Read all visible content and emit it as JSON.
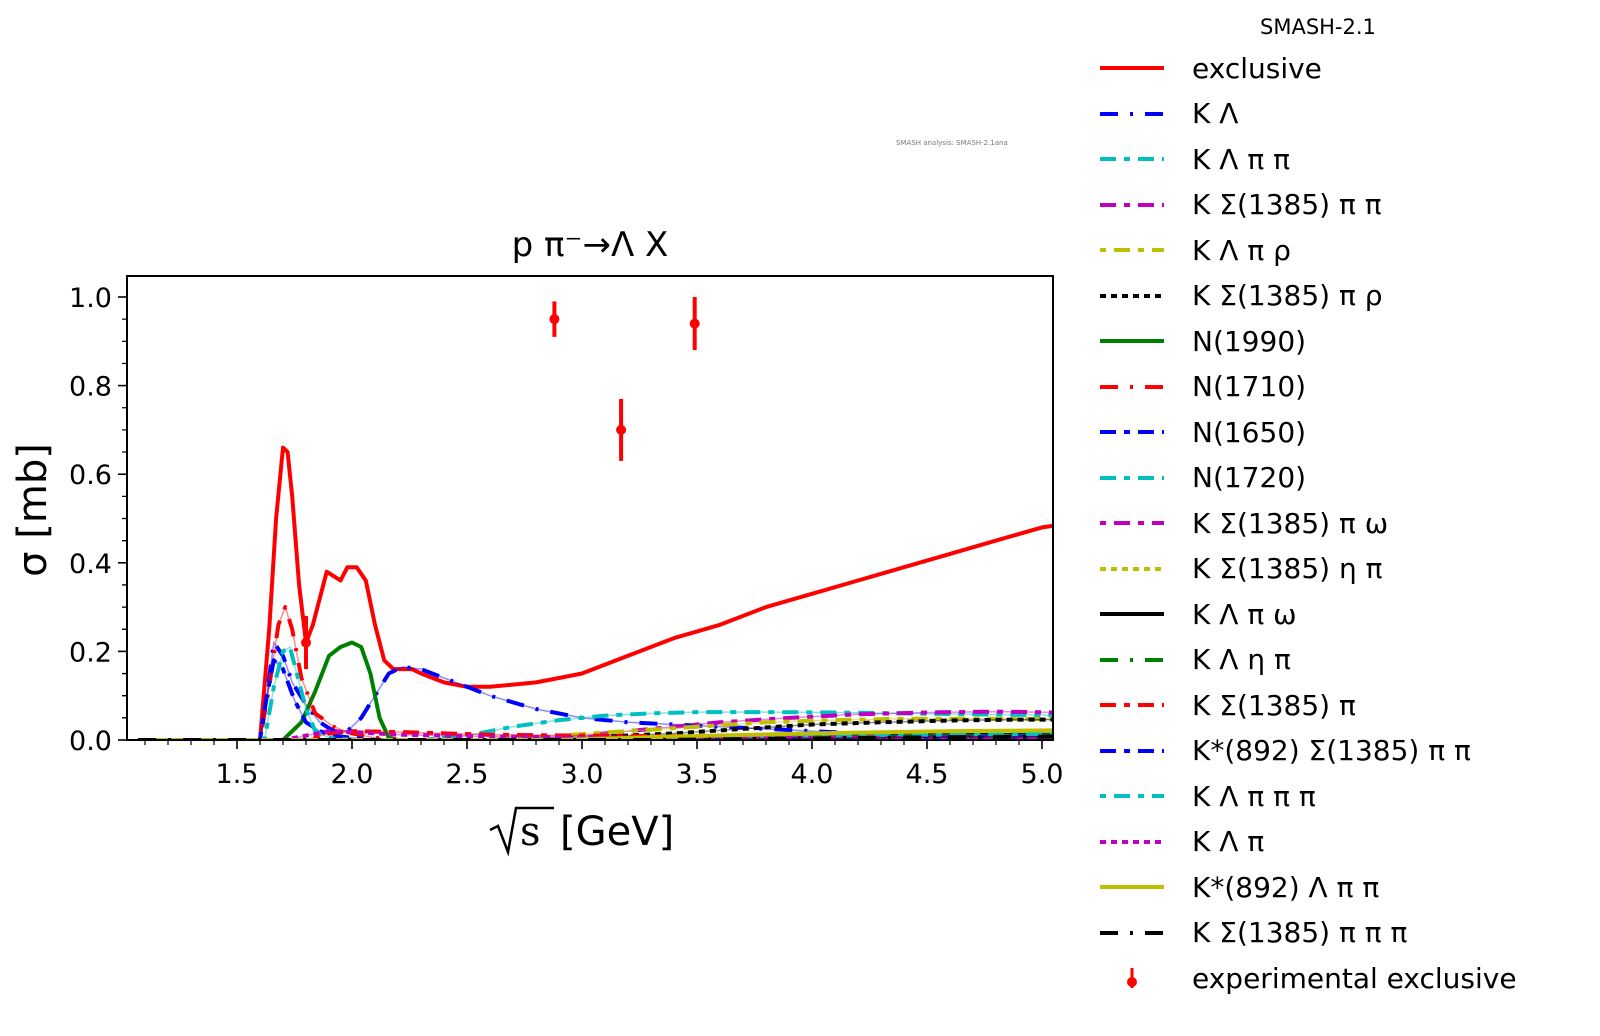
{
  "chart_data": {
    "type": "line",
    "title": "p π⁻→Λ X",
    "xlabel": "√s [GeV]",
    "xlabel_root": "s",
    "xlabel_unit": "[GeV]",
    "ylabel": "σ [mb]",
    "xlim": [
      1.07,
      5.07
    ],
    "ylim": [
      0.0,
      1.05
    ],
    "xticks": [
      1.5,
      2.0,
      2.5,
      3.0,
      3.5,
      4.0,
      4.5,
      5.0
    ],
    "xtick_labels": [
      "1.5",
      "2.0",
      "2.5",
      "3.0",
      "3.5",
      "4.0",
      "4.5",
      "5.0"
    ],
    "yticks": [
      0.0,
      0.2,
      0.4,
      0.6,
      0.8,
      1.0
    ],
    "ytick_labels": [
      "0.0",
      "0.2",
      "0.4",
      "0.6",
      "0.8",
      "1.0"
    ],
    "grid": false,
    "legend_title": "SMASH-2.1",
    "legend_position": "outside-right",
    "annotation": "SMASH analysis: SMASH-2.1ana",
    "series": [
      {
        "name": "exclusive",
        "color": "#ff0000",
        "dash": "solid",
        "x": [
          1.07,
          1.6,
          1.64,
          1.67,
          1.7,
          1.72,
          1.74,
          1.77,
          1.8,
          1.83,
          1.86,
          1.89,
          1.92,
          1.95,
          1.98,
          2.02,
          2.06,
          2.1,
          2.14,
          2.18,
          2.22,
          2.26,
          2.3,
          2.4,
          2.5,
          2.6,
          2.7,
          2.8,
          2.9,
          3.0,
          3.2,
          3.4,
          3.6,
          3.8,
          4.0,
          4.2,
          4.4,
          4.6,
          4.8,
          5.0,
          5.07
        ],
        "y": [
          0.0,
          0.0,
          0.25,
          0.5,
          0.66,
          0.65,
          0.55,
          0.35,
          0.22,
          0.26,
          0.32,
          0.38,
          0.37,
          0.36,
          0.39,
          0.39,
          0.36,
          0.26,
          0.18,
          0.16,
          0.16,
          0.16,
          0.15,
          0.13,
          0.12,
          0.12,
          0.125,
          0.13,
          0.14,
          0.15,
          0.19,
          0.23,
          0.26,
          0.3,
          0.33,
          0.36,
          0.39,
          0.42,
          0.45,
          0.48,
          0.485
        ]
      },
      {
        "name": "K Λ",
        "color": "#0000ff",
        "dash": "long-dot",
        "x": [
          1.07,
          1.6,
          1.63,
          1.66,
          1.7,
          1.74,
          1.8,
          1.86,
          1.92,
          1.98,
          2.04,
          2.1,
          2.16,
          2.22,
          2.3,
          2.4,
          2.5,
          2.6,
          2.8,
          3.0,
          3.2,
          3.4,
          3.6,
          3.8,
          4.0,
          4.2,
          4.4,
          4.6,
          5.07
        ],
        "y": [
          0.0,
          0.0,
          0.1,
          0.22,
          0.19,
          0.13,
          0.08,
          0.04,
          0.02,
          0.02,
          0.05,
          0.1,
          0.15,
          0.165,
          0.16,
          0.14,
          0.12,
          0.1,
          0.07,
          0.05,
          0.04,
          0.035,
          0.03,
          0.025,
          0.02,
          0.015,
          0.01,
          0.008,
          0.005
        ]
      },
      {
        "name": "K Λ π π",
        "color": "#00bfbf",
        "dash": "long-short",
        "x": [
          1.07,
          2.3,
          2.5,
          2.7,
          2.9,
          3.1,
          3.3,
          3.5,
          3.8,
          4.1,
          4.4,
          4.7,
          5.07
        ],
        "y": [
          0.0,
          0.0,
          0.01,
          0.03,
          0.045,
          0.055,
          0.06,
          0.063,
          0.063,
          0.062,
          0.06,
          0.058,
          0.056
        ]
      },
      {
        "name": "K Σ(1385) π π",
        "color": "#bf00bf",
        "dash": "long-short",
        "x": [
          1.07,
          2.7,
          3.0,
          3.3,
          3.6,
          3.9,
          4.2,
          4.5,
          4.8,
          5.07
        ],
        "y": [
          0.0,
          0.0,
          0.01,
          0.025,
          0.04,
          0.05,
          0.058,
          0.062,
          0.064,
          0.062
        ]
      },
      {
        "name": "K Λ π ρ",
        "color": "#bfbf00",
        "dash": "short-long",
        "x": [
          1.07,
          2.6,
          2.9,
          3.2,
          3.5,
          3.8,
          4.1,
          4.4,
          4.7,
          5.07
        ],
        "y": [
          0.0,
          0.0,
          0.01,
          0.02,
          0.03,
          0.04,
          0.045,
          0.048,
          0.048,
          0.047
        ]
      },
      {
        "name": "K Σ(1385) π ρ",
        "color": "#000000",
        "dash": "dashed",
        "x": [
          1.07,
          2.8,
          3.1,
          3.4,
          3.7,
          4.0,
          4.3,
          4.6,
          4.9,
          5.07
        ],
        "y": [
          0.0,
          0.0,
          0.008,
          0.015,
          0.025,
          0.035,
          0.04,
          0.044,
          0.046,
          0.046
        ]
      },
      {
        "name": "N(1990)",
        "color": "#008000",
        "dash": "solid",
        "x": [
          1.07,
          1.7,
          1.78,
          1.84,
          1.9,
          1.95,
          2.0,
          2.04,
          2.08,
          2.12,
          2.16,
          2.2,
          5.07
        ],
        "y": [
          0.0,
          0.0,
          0.04,
          0.11,
          0.19,
          0.21,
          0.22,
          0.21,
          0.15,
          0.05,
          0.005,
          0.0,
          0.0
        ]
      },
      {
        "name": "N(1710)",
        "color": "#ff0000",
        "dash": "long-dot",
        "x": [
          1.07,
          1.6,
          1.64,
          1.68,
          1.71,
          1.74,
          1.78,
          1.84,
          1.92,
          2.0,
          2.1,
          2.2,
          5.07
        ],
        "y": [
          0.0,
          0.0,
          0.12,
          0.26,
          0.3,
          0.25,
          0.14,
          0.06,
          0.03,
          0.015,
          0.005,
          0.0,
          0.0
        ]
      },
      {
        "name": "N(1650)",
        "color": "#0000ff",
        "dash": "long-short",
        "x": [
          1.07,
          1.6,
          1.63,
          1.66,
          1.7,
          1.75,
          1.8,
          1.86,
          1.92,
          2.0,
          2.1,
          5.07
        ],
        "y": [
          0.0,
          0.0,
          0.1,
          0.18,
          0.16,
          0.09,
          0.04,
          0.02,
          0.01,
          0.005,
          0.0,
          0.0
        ]
      },
      {
        "name": "N(1720)",
        "color": "#00bfbf",
        "dash": "long-short",
        "x": [
          1.07,
          1.62,
          1.66,
          1.7,
          1.73,
          1.76,
          1.8,
          1.84,
          1.9,
          2.0,
          5.07
        ],
        "y": [
          0.0,
          0.0,
          0.12,
          0.2,
          0.21,
          0.15,
          0.07,
          0.02,
          0.005,
          0.0,
          0.0
        ]
      },
      {
        "name": "K Σ(1385) π ω",
        "color": "#bf00bf",
        "dash": "short-long",
        "x": [
          1.07,
          3.5,
          4.0,
          4.5,
          5.07
        ],
        "y": [
          0.0,
          0.0,
          0.002,
          0.005,
          0.008
        ]
      },
      {
        "name": "K Σ(1385) η π",
        "color": "#bfbf00",
        "dash": "dashed",
        "x": [
          1.07,
          3.2,
          3.8,
          4.4,
          5.07
        ],
        "y": [
          0.0,
          0.0,
          0.003,
          0.006,
          0.008
        ]
      },
      {
        "name": "K Λ π ω",
        "color": "#000000",
        "dash": "solid",
        "x": [
          1.07,
          3.0,
          3.6,
          4.2,
          5.07
        ],
        "y": [
          0.0,
          0.0,
          0.005,
          0.01,
          0.012
        ]
      },
      {
        "name": "K Λ η π",
        "color": "#008000",
        "dash": "long-dot",
        "x": [
          1.07,
          2.8,
          3.4,
          4.0,
          5.07
        ],
        "y": [
          0.0,
          0.0,
          0.004,
          0.008,
          0.01
        ]
      },
      {
        "name": "K Σ(1385) π",
        "color": "#ff0000",
        "dash": "long-short",
        "x": [
          1.07,
          1.8,
          1.9,
          2.0,
          2.2,
          2.6,
          3.0,
          3.6,
          4.2,
          5.07
        ],
        "y": [
          0.0,
          0.0,
          0.015,
          0.02,
          0.018,
          0.012,
          0.01,
          0.008,
          0.007,
          0.006
        ]
      },
      {
        "name": "K*(892) Σ(1385) π π",
        "color": "#0000ff",
        "dash": "long-short",
        "x": [
          1.07,
          3.4,
          4.0,
          4.6,
          5.07
        ],
        "y": [
          0.0,
          0.0,
          0.003,
          0.006,
          0.008
        ]
      },
      {
        "name": "K Λ π π π",
        "color": "#00bfbf",
        "dash": "short-long",
        "x": [
          1.07,
          2.6,
          3.2,
          3.8,
          4.4,
          5.07
        ],
        "y": [
          0.0,
          0.0,
          0.004,
          0.008,
          0.011,
          0.013
        ]
      },
      {
        "name": "K Λ π",
        "color": "#bf00bf",
        "dash": "dashed",
        "x": [
          1.07,
          1.7,
          1.8,
          1.9,
          2.0,
          2.2,
          2.6,
          3.0,
          3.6,
          4.2,
          5.07
        ],
        "y": [
          0.0,
          0.0,
          0.01,
          0.02,
          0.018,
          0.012,
          0.008,
          0.006,
          0.005,
          0.004,
          0.004
        ]
      },
      {
        "name": "K*(892) Λ π π",
        "color": "#bfbf00",
        "dash": "solid",
        "x": [
          1.07,
          2.9,
          3.4,
          4.0,
          4.6,
          5.07
        ],
        "y": [
          0.0,
          0.0,
          0.008,
          0.015,
          0.02,
          0.022
        ]
      },
      {
        "name": "K Σ(1385) π π π",
        "color": "#000000",
        "dash": "long-dot",
        "x": [
          1.07,
          3.3,
          3.9,
          4.5,
          5.07
        ],
        "y": [
          0.0,
          0.0,
          0.003,
          0.006,
          0.008
        ]
      }
    ],
    "errorbars": {
      "name": "experimental exclusive",
      "color": "#ff0000",
      "x": [
        1.8,
        2.88,
        3.17,
        3.49
      ],
      "y": [
        0.22,
        0.95,
        0.7,
        0.94
      ],
      "yerr": [
        0.06,
        0.04,
        0.07,
        0.06
      ]
    }
  }
}
